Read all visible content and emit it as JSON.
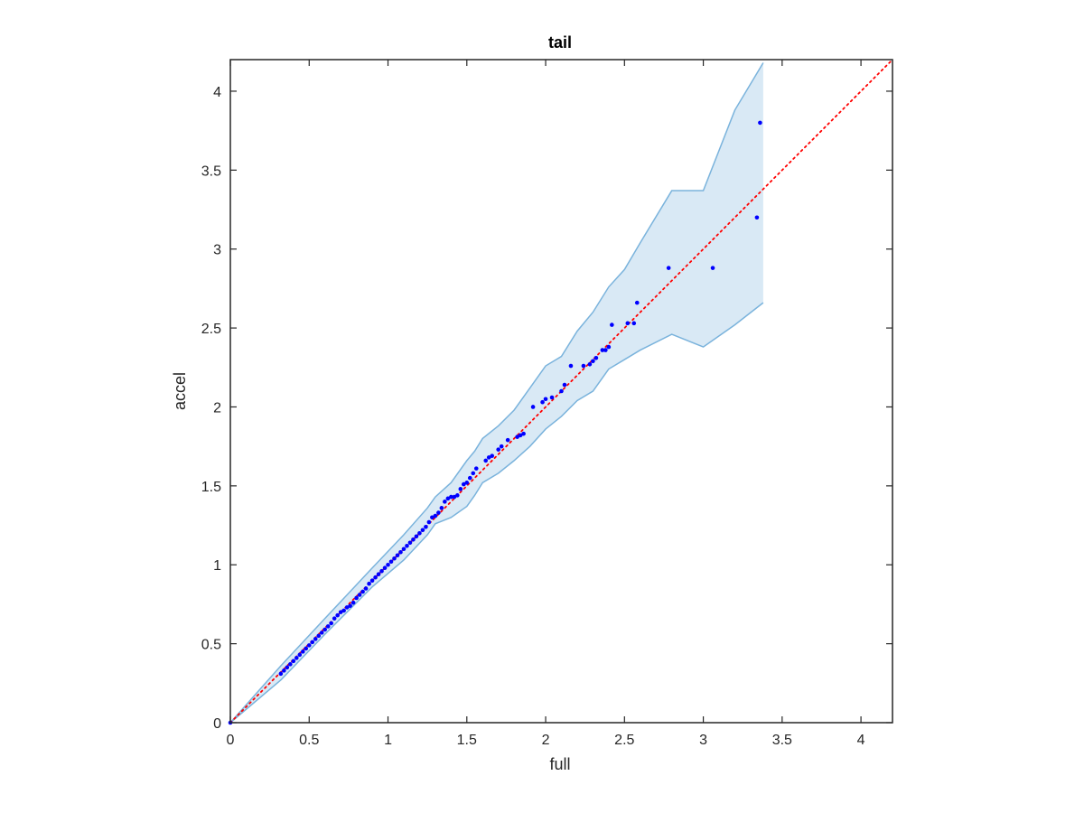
{
  "chart_data": {
    "type": "scatter",
    "title": "tail",
    "xlabel": "full",
    "ylabel": "accel",
    "xlim": [
      0,
      4.2
    ],
    "ylim": [
      0,
      4.2
    ],
    "grid": false,
    "x_ticks": [
      "0",
      "0.5",
      "1",
      "1.5",
      "2",
      "2.5",
      "3",
      "3.5",
      "4"
    ],
    "y_ticks": [
      "0",
      "0.5",
      "1",
      "1.5",
      "2",
      "2.5",
      "3",
      "3.5",
      "4"
    ],
    "series": [
      {
        "type": "scatter",
        "color": "#0000ff",
        "points": [
          [
            0,
            0
          ],
          [
            0.32,
            0.31
          ],
          [
            0.34,
            0.33
          ],
          [
            0.36,
            0.35
          ],
          [
            0.38,
            0.37
          ],
          [
            0.4,
            0.39
          ],
          [
            0.42,
            0.41
          ],
          [
            0.44,
            0.43
          ],
          [
            0.46,
            0.45
          ],
          [
            0.48,
            0.47
          ],
          [
            0.5,
            0.49
          ],
          [
            0.52,
            0.51
          ],
          [
            0.54,
            0.53
          ],
          [
            0.56,
            0.55
          ],
          [
            0.58,
            0.57
          ],
          [
            0.6,
            0.59
          ],
          [
            0.62,
            0.61
          ],
          [
            0.64,
            0.63
          ],
          [
            0.66,
            0.66
          ],
          [
            0.68,
            0.68
          ],
          [
            0.7,
            0.7
          ],
          [
            0.72,
            0.71
          ],
          [
            0.74,
            0.73
          ],
          [
            0.76,
            0.74
          ],
          [
            0.78,
            0.76
          ],
          [
            0.8,
            0.79
          ],
          [
            0.82,
            0.81
          ],
          [
            0.84,
            0.83
          ],
          [
            0.86,
            0.85
          ],
          [
            0.88,
            0.88
          ],
          [
            0.9,
            0.9
          ],
          [
            0.92,
            0.92
          ],
          [
            0.94,
            0.94
          ],
          [
            0.96,
            0.96
          ],
          [
            0.98,
            0.98
          ],
          [
            1.0,
            1.0
          ],
          [
            1.02,
            1.02
          ],
          [
            1.04,
            1.04
          ],
          [
            1.06,
            1.06
          ],
          [
            1.08,
            1.08
          ],
          [
            1.1,
            1.1
          ],
          [
            1.12,
            1.12
          ],
          [
            1.14,
            1.14
          ],
          [
            1.16,
            1.16
          ],
          [
            1.18,
            1.18
          ],
          [
            1.2,
            1.2
          ],
          [
            1.22,
            1.22
          ],
          [
            1.24,
            1.24
          ],
          [
            1.26,
            1.27
          ],
          [
            1.28,
            1.3
          ],
          [
            1.3,
            1.31
          ],
          [
            1.32,
            1.33
          ],
          [
            1.34,
            1.36
          ],
          [
            1.36,
            1.4
          ],
          [
            1.38,
            1.42
          ],
          [
            1.4,
            1.43
          ],
          [
            1.42,
            1.43
          ],
          [
            1.44,
            1.44
          ],
          [
            1.46,
            1.48
          ],
          [
            1.48,
            1.51
          ],
          [
            1.5,
            1.52
          ],
          [
            1.52,
            1.55
          ],
          [
            1.54,
            1.58
          ],
          [
            1.56,
            1.61
          ],
          [
            1.62,
            1.66
          ],
          [
            1.64,
            1.68
          ],
          [
            1.66,
            1.69
          ],
          [
            1.7,
            1.73
          ],
          [
            1.72,
            1.75
          ],
          [
            1.76,
            1.79
          ],
          [
            1.82,
            1.81
          ],
          [
            1.84,
            1.82
          ],
          [
            1.86,
            1.83
          ],
          [
            1.92,
            2.0
          ],
          [
            1.98,
            2.03
          ],
          [
            2.0,
            2.05
          ],
          [
            2.04,
            2.06
          ],
          [
            2.1,
            2.1
          ],
          [
            2.12,
            2.14
          ],
          [
            2.16,
            2.26
          ],
          [
            2.24,
            2.26
          ],
          [
            2.28,
            2.27
          ],
          [
            2.3,
            2.29
          ],
          [
            2.32,
            2.31
          ],
          [
            2.36,
            2.36
          ],
          [
            2.38,
            2.36
          ],
          [
            2.4,
            2.38
          ],
          [
            2.42,
            2.52
          ],
          [
            2.52,
            2.53
          ],
          [
            2.56,
            2.53
          ],
          [
            2.58,
            2.66
          ],
          [
            2.78,
            2.88
          ],
          [
            3.06,
            2.88
          ],
          [
            3.34,
            3.2
          ],
          [
            3.36,
            3.8
          ]
        ]
      },
      {
        "type": "line",
        "color": "#ff0000",
        "style": "dotted",
        "x": [
          0,
          4.2
        ],
        "y": [
          0,
          4.2
        ]
      },
      {
        "type": "band",
        "color": "#b9d7ec",
        "edge_color": "#7ab3dc",
        "x": [
          0,
          0.32,
          0.6,
          0.9,
          1.1,
          1.25,
          1.3,
          1.4,
          1.5,
          1.55,
          1.6,
          1.7,
          1.8,
          1.9,
          2.0,
          2.1,
          2.2,
          2.3,
          2.4,
          2.5,
          2.6,
          2.8,
          3.0,
          3.2,
          3.38
        ],
        "upper": [
          0,
          0.36,
          0.66,
          0.98,
          1.19,
          1.36,
          1.43,
          1.52,
          1.66,
          1.72,
          1.8,
          1.88,
          1.98,
          2.12,
          2.26,
          2.32,
          2.48,
          2.6,
          2.76,
          2.87,
          3.04,
          3.37,
          3.37,
          3.88,
          4.18
        ],
        "lower": [
          0,
          0.27,
          0.56,
          0.86,
          1.03,
          1.19,
          1.26,
          1.3,
          1.37,
          1.44,
          1.52,
          1.58,
          1.66,
          1.75,
          1.86,
          1.94,
          2.04,
          2.1,
          2.24,
          2.3,
          2.36,
          2.46,
          2.38,
          2.52,
          2.66
        ]
      }
    ]
  }
}
